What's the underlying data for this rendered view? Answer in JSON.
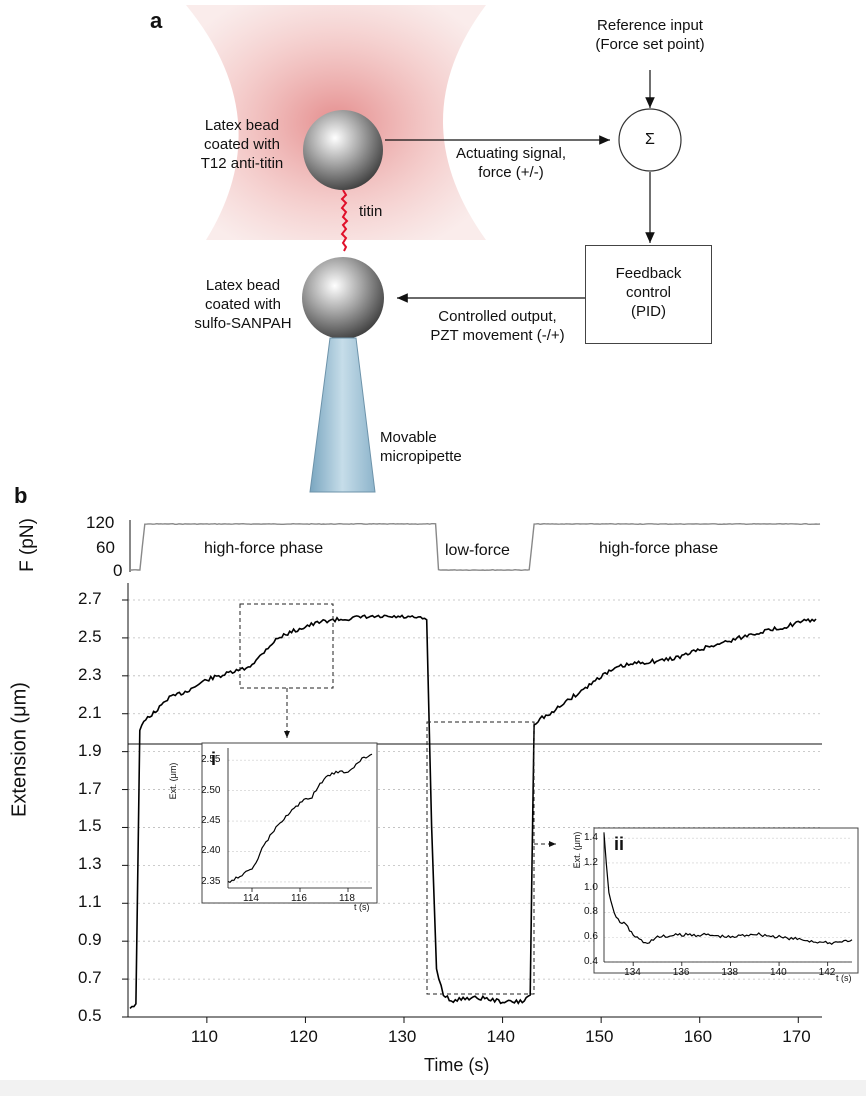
{
  "panel_a": {
    "letter": "a",
    "reference_input": [
      "Reference input",
      "(Force set point)"
    ],
    "sum_symbol": "Σ",
    "bead_top_label": [
      "Latex bead",
      "coated with",
      "T12 anti-titin"
    ],
    "titin_label": "titin",
    "actuating_label": [
      "Actuating signal,",
      "force (+/-)"
    ],
    "feedback_label": [
      "Feedback",
      "control",
      "(PID)"
    ],
    "bead_bottom_label": [
      "Latex bead",
      "coated with",
      "sulfo-SANPAH"
    ],
    "controlled_label": [
      "Controlled output,",
      "PZT movement (-/+)"
    ],
    "pipette_label": [
      "Movable",
      "micropipette"
    ],
    "colors": {
      "trap": "#e8a0a0",
      "titin": "#e0102a",
      "pipette": "#a8c8dc"
    }
  },
  "panel_b": {
    "letter": "b",
    "force_ylabel": "F (pN)",
    "force_ticks": [
      "120",
      "60",
      "0"
    ],
    "phase_labels": [
      "high-force phase",
      "low-force",
      "high-force phase"
    ],
    "ext_ylabel": "Extension (μm)",
    "y_ticks": [
      "2.7",
      "2.5",
      "2.3",
      "2.1",
      "1.9",
      "1.7",
      "1.5",
      "1.3",
      "1.1",
      "0.9",
      "0.7",
      "0.5"
    ],
    "x_ticks": [
      "110",
      "120",
      "130",
      "140",
      "150",
      "160",
      "170"
    ],
    "xlabel": "Time (s)",
    "inset_i": {
      "label": "i",
      "ylabel": "Ext. (μm)",
      "xunit": "t (s)",
      "y_ticks": [
        "2.55",
        "2.50",
        "2.45",
        "2.40",
        "2.35"
      ],
      "x_ticks": [
        "114",
        "116",
        "118"
      ]
    },
    "inset_ii": {
      "label": "ii",
      "ylabel": "Ext. (μm)",
      "xunit": "t (s)",
      "y_ticks": [
        "1.4",
        "1.2",
        "1.0",
        "0.8",
        "0.6",
        "0.4"
      ],
      "x_ticks": [
        "134",
        "136",
        "138",
        "140",
        "142"
      ]
    }
  },
  "chart_data": [
    {
      "type": "line",
      "title": "",
      "xlabel": "Time (s)",
      "ylabel": "F (pN)",
      "xlim": [
        102,
        172
      ],
      "ylim": [
        0,
        120
      ],
      "series": [
        {
          "x": [
            102,
            103,
            103.5,
            133,
            133.3,
            142.5,
            143,
            172
          ],
          "y": [
            0,
            0,
            120,
            120,
            0,
            0,
            120,
            120
          ]
        }
      ]
    },
    {
      "type": "line",
      "title": "",
      "xlabel": "Time (s)",
      "ylabel": "Extension (μm)",
      "xlim": [
        102,
        172
      ],
      "ylim": [
        0.45,
        2.75
      ],
      "grid": true,
      "series": [
        {
          "x": [
            102.2,
            102.8,
            103.2,
            104,
            105,
            106,
            108,
            110,
            112,
            114,
            115,
            116,
            117,
            118,
            120,
            122,
            124,
            126,
            128,
            130,
            132.3,
            132.8,
            133.3,
            134,
            135,
            136,
            138,
            140,
            142,
            142.8,
            143.2,
            144,
            145,
            146,
            148,
            150,
            152,
            154,
            156,
            158,
            160,
            162,
            164,
            166,
            168,
            170,
            171.8
          ],
          "y": [
            0.55,
            0.57,
            2.02,
            2.08,
            2.12,
            2.18,
            2.22,
            2.28,
            2.31,
            2.34,
            2.38,
            2.44,
            2.49,
            2.52,
            2.56,
            2.59,
            2.6,
            2.61,
            2.61,
            2.61,
            2.6,
            1.5,
            0.75,
            0.62,
            0.58,
            0.6,
            0.6,
            0.58,
            0.58,
            0.62,
            2.05,
            2.08,
            2.1,
            2.15,
            2.22,
            2.3,
            2.35,
            2.37,
            2.38,
            2.4,
            2.44,
            2.47,
            2.5,
            2.53,
            2.55,
            2.58,
            2.6
          ]
        }
      ]
    },
    {
      "type": "line",
      "title": "",
      "xlabel": "t (s)",
      "ylabel": "Ext. (μm)",
      "xlim": [
        113,
        119
      ],
      "ylim": [
        2.34,
        2.57
      ],
      "grid": true,
      "series": [
        {
          "x": [
            113,
            113.5,
            114,
            114.5,
            115,
            115.5,
            116,
            116.5,
            117,
            117.5,
            118,
            118.5,
            119
          ],
          "y": [
            2.35,
            2.36,
            2.37,
            2.41,
            2.44,
            2.46,
            2.48,
            2.49,
            2.52,
            2.53,
            2.53,
            2.55,
            2.56
          ]
        }
      ]
    },
    {
      "type": "line",
      "title": "",
      "xlabel": "t (s)",
      "ylabel": "Ext. (μm)",
      "xlim": [
        132.8,
        143
      ],
      "ylim": [
        0.4,
        1.45
      ],
      "grid": true,
      "series": [
        {
          "x": [
            132.8,
            133,
            133.3,
            133.7,
            134,
            134.5,
            135,
            136,
            137,
            138,
            139,
            140,
            141,
            142,
            143
          ],
          "y": [
            1.45,
            0.95,
            0.75,
            0.7,
            0.62,
            0.55,
            0.6,
            0.62,
            0.62,
            0.6,
            0.63,
            0.6,
            0.58,
            0.55,
            0.58
          ]
        }
      ]
    }
  ]
}
